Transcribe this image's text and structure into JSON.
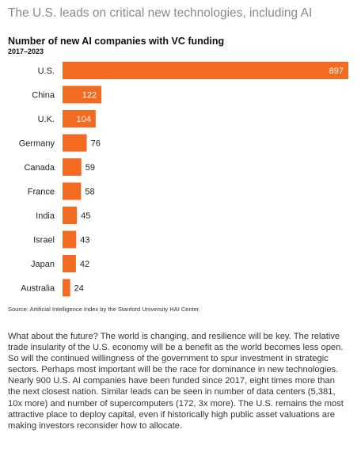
{
  "headline": "The U.S. leads on critical new technologies, including AI",
  "source": "Source: Artificial Intelligence Index by the Stanford University HAI Center.",
  "body": "What about the future? The world is changing, and resilience will be key. The relative trade insularity of the U.S. economy will be a benefit as the world becomes less open. So will the continued willingness of the government to spur investment in strategic sectors. Perhaps most important will be the race for dominance in new technologies. Nearly 900 U.S. AI companies have been funded since 2017, eight times more than the next closest nation. Similar leads can be seen in number of data centers (5,381, 10x more) and number of supercomputers (172, 3x more). The U.S. remains the most attractive place to deploy capital, even if historically high public asset valuations are making investors reconsider how to allocate.",
  "colors": {
    "bar": "#f26b21",
    "label_inside": "#ffffff",
    "label_outside": "#222222"
  },
  "chart_data": {
    "type": "bar",
    "orientation": "horizontal",
    "title": "Number of new AI companies with VC funding",
    "subtitle": "2017–2023",
    "categories": [
      "U.S.",
      "China",
      "U.K.",
      "Germany",
      "Canada",
      "France",
      "India",
      "Israel",
      "Japan",
      "Australia"
    ],
    "values": [
      897,
      122,
      104,
      76,
      59,
      58,
      45,
      43,
      42,
      24
    ],
    "xlim": [
      0,
      897
    ],
    "grid": false,
    "legend": "none"
  }
}
